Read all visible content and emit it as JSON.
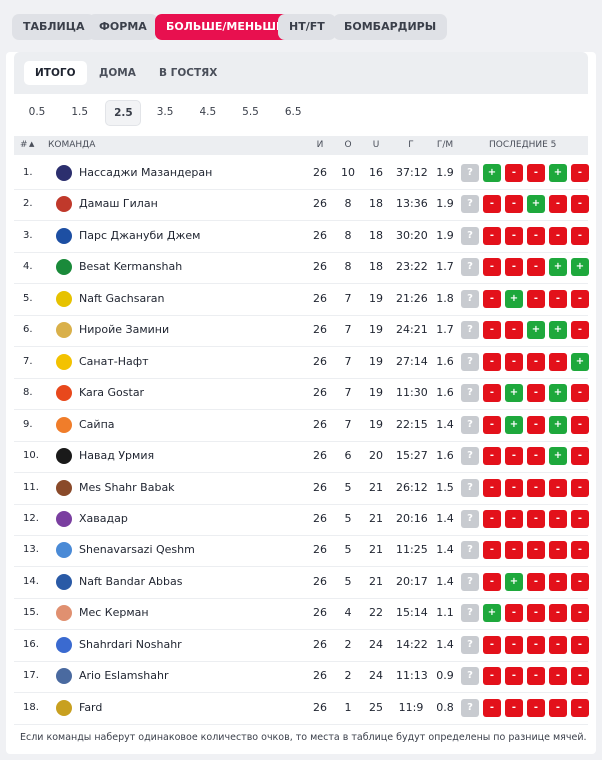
{
  "tabs": {
    "items": [
      "ТАБЛИЦА",
      "ФОРМА",
      "БОЛЬШЕ/МЕНЬШЕ",
      "HT/FT",
      "БОМБАРДИРЫ"
    ],
    "active": 2
  },
  "subtabs": {
    "items": [
      "ИТОГО",
      "ДОМА",
      "В ГОСТЯХ"
    ],
    "active": 0
  },
  "thresholds": {
    "items": [
      "0.5",
      "1.5",
      "2.5",
      "3.5",
      "4.5",
      "5.5",
      "6.5"
    ],
    "active": 2
  },
  "table": {
    "header": {
      "rank": "#",
      "team": "КОМАНДА",
      "played": "И",
      "over": "О",
      "under": "U",
      "goals": "Г",
      "gpm": "Г/М",
      "form": "ПОСЛЕДНИЕ 5"
    },
    "rows": [
      {
        "rank": "1.",
        "team": "Нассаджи Мазандеран",
        "played": 26,
        "over": 10,
        "under": 16,
        "goals": "37:12",
        "gpm": 1.9,
        "form": [
          "?",
          "+",
          "-",
          "-",
          "+",
          "-"
        ]
      },
      {
        "rank": "2.",
        "team": "Дамаш Гилан",
        "played": 26,
        "over": 8,
        "under": 18,
        "goals": "13:36",
        "gpm": 1.9,
        "form": [
          "?",
          "-",
          "-",
          "+",
          "-",
          "-"
        ]
      },
      {
        "rank": "3.",
        "team": "Парс Джануби Джем",
        "played": 26,
        "over": 8,
        "under": 18,
        "goals": "30:20",
        "gpm": 1.9,
        "form": [
          "?",
          "-",
          "-",
          "-",
          "-",
          "-"
        ]
      },
      {
        "rank": "4.",
        "team": "Besat Kermanshah",
        "played": 26,
        "over": 8,
        "under": 18,
        "goals": "23:22",
        "gpm": 1.7,
        "form": [
          "?",
          "-",
          "-",
          "-",
          "+",
          "+"
        ]
      },
      {
        "rank": "5.",
        "team": "Naft Gachsaran",
        "played": 26,
        "over": 7,
        "under": 19,
        "goals": "21:26",
        "gpm": 1.8,
        "form": [
          "?",
          "-",
          "+",
          "-",
          "-",
          "-"
        ]
      },
      {
        "rank": "6.",
        "team": "Ниройе Замини",
        "played": 26,
        "over": 7,
        "under": 19,
        "goals": "24:21",
        "gpm": 1.7,
        "form": [
          "?",
          "-",
          "-",
          "+",
          "+",
          "-"
        ]
      },
      {
        "rank": "7.",
        "team": "Санат-Нафт",
        "played": 26,
        "over": 7,
        "under": 19,
        "goals": "27:14",
        "gpm": 1.6,
        "form": [
          "?",
          "-",
          "-",
          "-",
          "-",
          "+"
        ]
      },
      {
        "rank": "8.",
        "team": "Kara Gostar",
        "played": 26,
        "over": 7,
        "under": 19,
        "goals": "11:30",
        "gpm": 1.6,
        "form": [
          "?",
          "-",
          "+",
          "-",
          "+",
          "-"
        ]
      },
      {
        "rank": "9.",
        "team": "Сайпа",
        "played": 26,
        "over": 7,
        "under": 19,
        "goals": "22:15",
        "gpm": 1.4,
        "form": [
          "?",
          "-",
          "+",
          "-",
          "+",
          "-"
        ]
      },
      {
        "rank": "10.",
        "team": "Навад Урмия",
        "played": 26,
        "over": 6,
        "under": 20,
        "goals": "15:27",
        "gpm": 1.6,
        "form": [
          "?",
          "-",
          "-",
          "-",
          "+",
          "-"
        ]
      },
      {
        "rank": "11.",
        "team": "Mes Shahr Babak",
        "played": 26,
        "over": 5,
        "under": 21,
        "goals": "26:12",
        "gpm": 1.5,
        "form": [
          "?",
          "-",
          "-",
          "-",
          "-",
          "-"
        ]
      },
      {
        "rank": "12.",
        "team": "Хавадар",
        "played": 26,
        "over": 5,
        "under": 21,
        "goals": "20:16",
        "gpm": 1.4,
        "form": [
          "?",
          "-",
          "-",
          "-",
          "-",
          "-"
        ]
      },
      {
        "rank": "13.",
        "team": "Shenavarsazi Qeshm",
        "played": 26,
        "over": 5,
        "under": 21,
        "goals": "11:25",
        "gpm": 1.4,
        "form": [
          "?",
          "-",
          "-",
          "-",
          "-",
          "-"
        ]
      },
      {
        "rank": "14.",
        "team": "Naft Bandar Abbas",
        "played": 26,
        "over": 5,
        "under": 21,
        "goals": "20:17",
        "gpm": 1.4,
        "form": [
          "?",
          "-",
          "+",
          "-",
          "-",
          "-"
        ]
      },
      {
        "rank": "15.",
        "team": "Мес Керман",
        "played": 26,
        "over": 4,
        "under": 22,
        "goals": "15:14",
        "gpm": 1.1,
        "form": [
          "?",
          "+",
          "-",
          "-",
          "-",
          "-"
        ]
      },
      {
        "rank": "16.",
        "team": "Shahrdari Noshahr",
        "played": 26,
        "over": 2,
        "under": 24,
        "goals": "14:22",
        "gpm": 1.4,
        "form": [
          "?",
          "-",
          "-",
          "-",
          "-",
          "-"
        ]
      },
      {
        "rank": "17.",
        "team": "Ario Eslamshahr",
        "played": 26,
        "over": 2,
        "under": 24,
        "goals": "11:13",
        "gpm": 0.9,
        "form": [
          "?",
          "-",
          "-",
          "-",
          "-",
          "-"
        ]
      },
      {
        "rank": "18.",
        "team": "Fard",
        "played": 26,
        "over": 1,
        "under": 25,
        "goals": "11:9",
        "gpm": 0.8,
        "form": [
          "?",
          "-",
          "-",
          "-",
          "-",
          "-"
        ]
      }
    ]
  },
  "footer": "Если команды наберут одинаковое количество очков, то места в таблице будут определены по разнице мячей."
}
